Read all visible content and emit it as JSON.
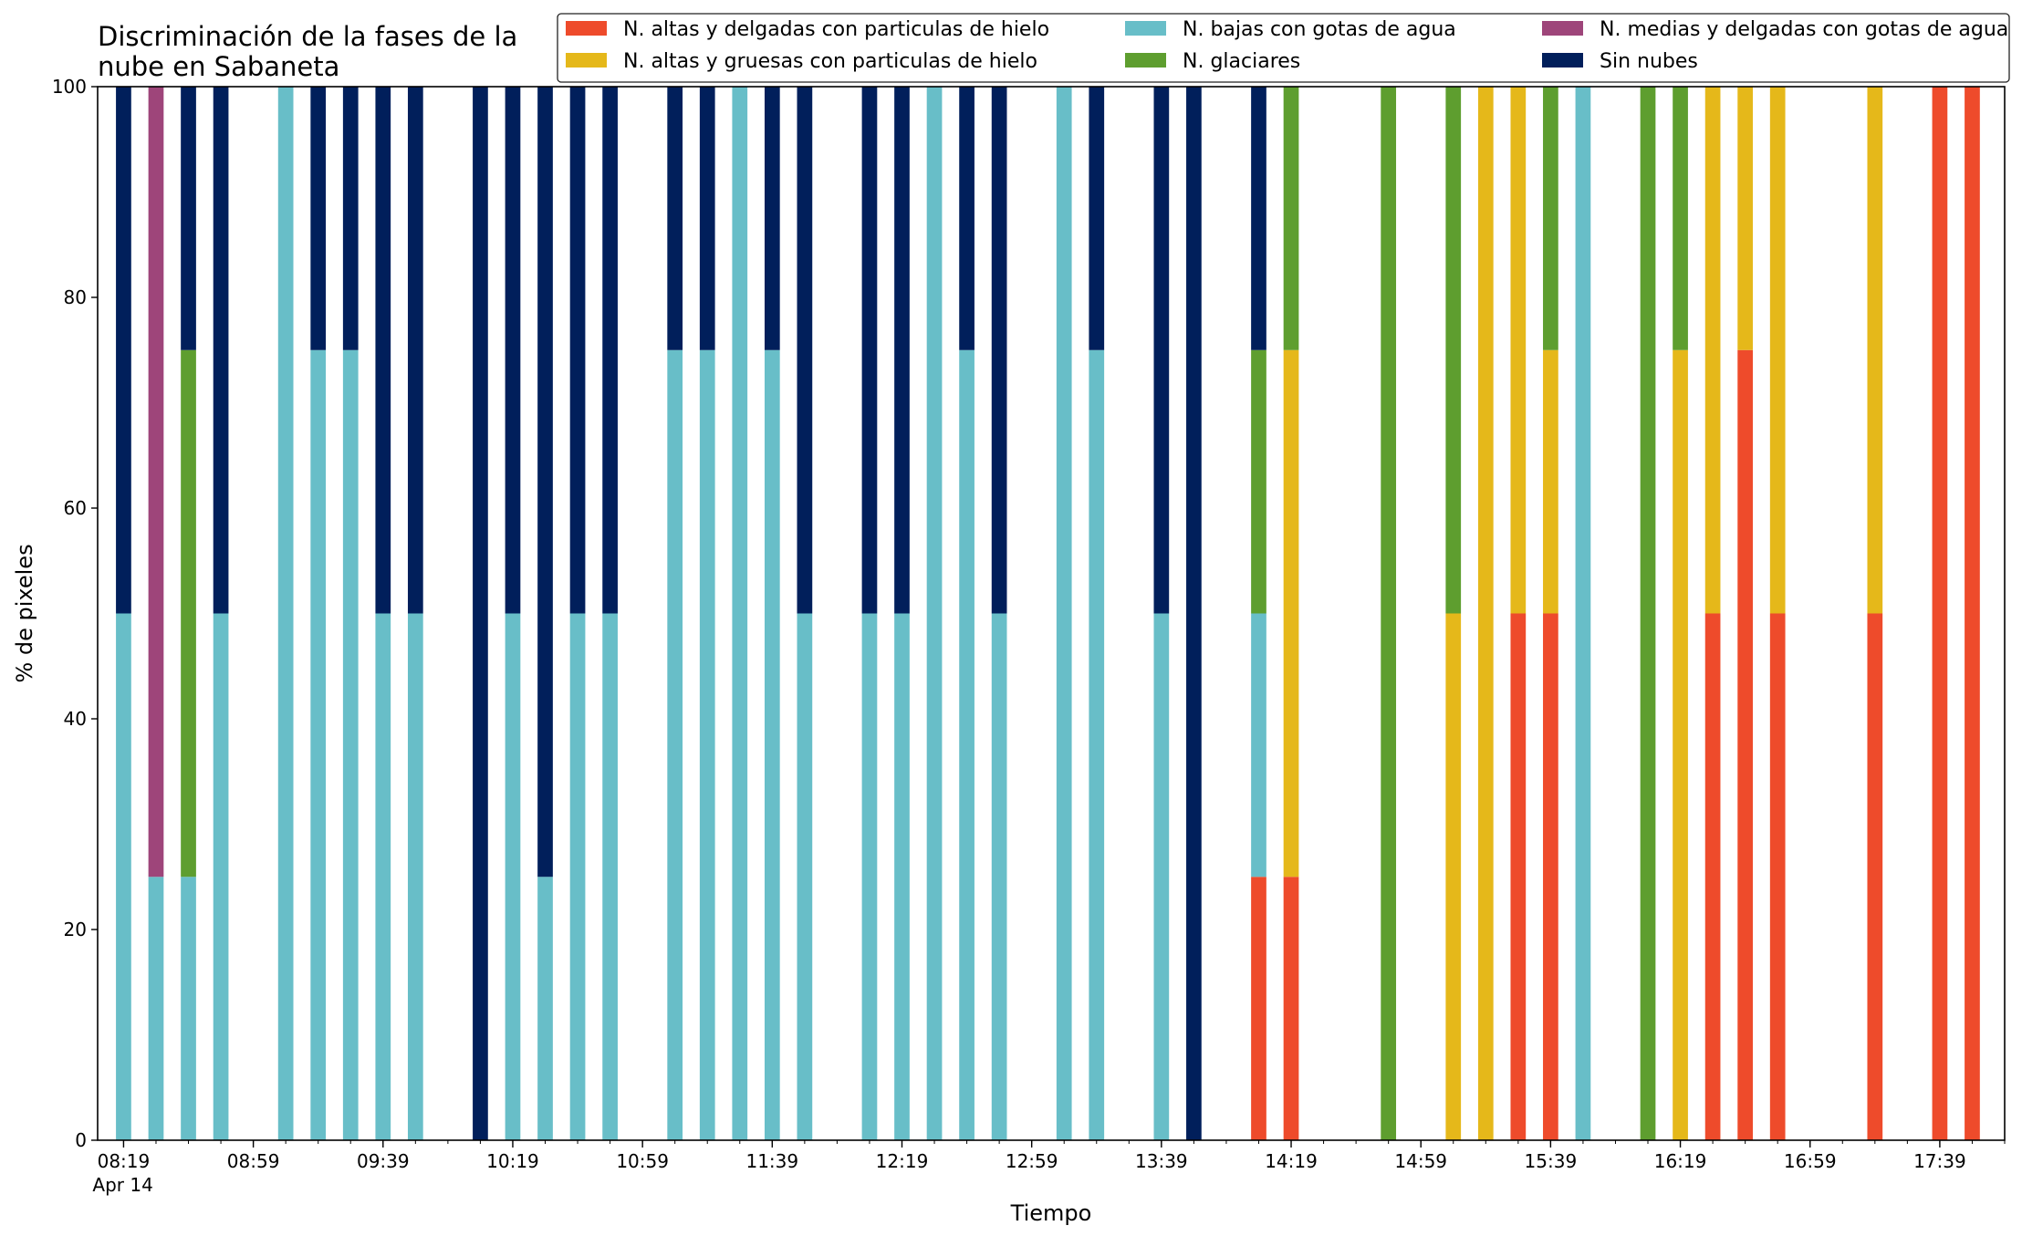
{
  "chart_data": {
    "type": "bar",
    "stacked": true,
    "title": "Discriminación de la fases de la\nnube en Sabaneta",
    "xlabel": "Tiempo",
    "ylabel": "% de pixeles",
    "ylim": [
      0,
      100
    ],
    "yticks": [
      0,
      20,
      40,
      60,
      80,
      100
    ],
    "x_date": "Apr 14",
    "x_start": "08:19",
    "x_end": "17:59",
    "x_interval_minutes": 10,
    "xtick_labels": [
      "08:19",
      "08:59",
      "09:39",
      "10:19",
      "10:59",
      "11:39",
      "12:19",
      "12:59",
      "13:39",
      "14:19",
      "14:59",
      "15:39",
      "16:19",
      "16:59",
      "17:39"
    ],
    "grid": false,
    "legend": {
      "placement": "top-right",
      "columns": 3
    },
    "series": [
      {
        "name": "N. altas y delgadas con particulas de hielo",
        "color": "#ee4b2b"
      },
      {
        "name": "N. altas y gruesas con particulas de hielo",
        "color": "#e5b81a"
      },
      {
        "name": "N. bajas con gotas de agua",
        "color": "#68bec8"
      },
      {
        "name": "N. glaciares",
        "color": "#5e9e2f"
      },
      {
        "name": "N. medias y delgadas con gotas de agua",
        "color": "#9e457a"
      },
      {
        "name": "Sin nubes",
        "color": "#011f5b"
      }
    ],
    "bars": [
      {
        "time": "08:19",
        "values": [
          0,
          0,
          50,
          0,
          0,
          50
        ]
      },
      {
        "time": "08:29",
        "values": [
          0,
          0,
          25,
          0,
          75,
          0
        ]
      },
      {
        "time": "08:39",
        "values": [
          0,
          0,
          25,
          50,
          0,
          25
        ]
      },
      {
        "time": "08:49",
        "values": [
          0,
          0,
          50,
          0,
          0,
          50
        ]
      },
      {
        "time": "09:09",
        "values": [
          0,
          0,
          100,
          0,
          0,
          0
        ]
      },
      {
        "time": "09:19",
        "values": [
          0,
          0,
          75,
          0,
          0,
          25
        ]
      },
      {
        "time": "09:29",
        "values": [
          0,
          0,
          75,
          0,
          0,
          25
        ]
      },
      {
        "time": "09:39",
        "values": [
          0,
          0,
          50,
          0,
          0,
          50
        ]
      },
      {
        "time": "09:49",
        "values": [
          0,
          0,
          50,
          0,
          0,
          50
        ]
      },
      {
        "time": "10:09",
        "values": [
          0,
          0,
          0,
          0,
          0,
          100
        ]
      },
      {
        "time": "10:19",
        "values": [
          0,
          0,
          50,
          0,
          0,
          50
        ]
      },
      {
        "time": "10:29",
        "values": [
          0,
          0,
          25,
          0,
          0,
          75
        ]
      },
      {
        "time": "10:39",
        "values": [
          0,
          0,
          50,
          0,
          0,
          50
        ]
      },
      {
        "time": "10:49",
        "values": [
          0,
          0,
          50,
          0,
          0,
          50
        ]
      },
      {
        "time": "11:09",
        "values": [
          0,
          0,
          75,
          0,
          0,
          25
        ]
      },
      {
        "time": "11:19",
        "values": [
          0,
          0,
          75,
          0,
          0,
          25
        ]
      },
      {
        "time": "11:29",
        "values": [
          0,
          0,
          100,
          0,
          0,
          0
        ]
      },
      {
        "time": "11:39",
        "values": [
          0,
          0,
          75,
          0,
          0,
          25
        ]
      },
      {
        "time": "11:49",
        "values": [
          0,
          0,
          50,
          0,
          0,
          50
        ]
      },
      {
        "time": "12:09",
        "values": [
          0,
          0,
          50,
          0,
          0,
          50
        ]
      },
      {
        "time": "12:19",
        "values": [
          0,
          0,
          50,
          0,
          0,
          50
        ]
      },
      {
        "time": "12:29",
        "values": [
          0,
          0,
          100,
          0,
          0,
          0
        ]
      },
      {
        "time": "12:39",
        "values": [
          0,
          0,
          75,
          0,
          0,
          25
        ]
      },
      {
        "time": "12:49",
        "values": [
          0,
          0,
          50,
          0,
          0,
          50
        ]
      },
      {
        "time": "13:09",
        "values": [
          0,
          0,
          100,
          0,
          0,
          0
        ]
      },
      {
        "time": "13:19",
        "values": [
          0,
          0,
          75,
          0,
          0,
          25
        ]
      },
      {
        "time": "13:39",
        "values": [
          0,
          0,
          50,
          0,
          0,
          50
        ]
      },
      {
        "time": "13:49",
        "values": [
          0,
          0,
          0,
          0,
          0,
          100
        ]
      },
      {
        "time": "14:09",
        "values": [
          25,
          0,
          25,
          25,
          0,
          25
        ]
      },
      {
        "time": "14:19",
        "values": [
          25,
          50,
          0,
          25,
          0,
          0
        ]
      },
      {
        "time": "14:49",
        "values": [
          0,
          0,
          0,
          100,
          0,
          0
        ]
      },
      {
        "time": "15:09",
        "values": [
          0,
          50,
          0,
          50,
          0,
          0
        ]
      },
      {
        "time": "15:19",
        "values": [
          0,
          100,
          0,
          0,
          0,
          0
        ]
      },
      {
        "time": "15:29",
        "values": [
          50,
          50,
          0,
          0,
          0,
          0
        ]
      },
      {
        "time": "15:39",
        "values": [
          50,
          25,
          0,
          25,
          0,
          0
        ]
      },
      {
        "time": "15:49",
        "values": [
          0,
          0,
          100,
          0,
          0,
          0
        ]
      },
      {
        "time": "16:09",
        "values": [
          0,
          0,
          0,
          100,
          0,
          0
        ]
      },
      {
        "time": "16:19",
        "values": [
          0,
          75,
          0,
          25,
          0,
          0
        ]
      },
      {
        "time": "16:29",
        "values": [
          50,
          50,
          0,
          0,
          0,
          0
        ]
      },
      {
        "time": "16:39",
        "values": [
          75,
          25,
          0,
          0,
          0,
          0
        ]
      },
      {
        "time": "16:49",
        "values": [
          50,
          50,
          0,
          0,
          0,
          0
        ]
      },
      {
        "time": "17:19",
        "values": [
          50,
          50,
          0,
          0,
          0,
          0
        ]
      },
      {
        "time": "17:39",
        "values": [
          100,
          0,
          0,
          0,
          0,
          0
        ]
      },
      {
        "time": "17:49",
        "values": [
          100,
          0,
          0,
          0,
          0,
          0
        ]
      }
    ]
  }
}
